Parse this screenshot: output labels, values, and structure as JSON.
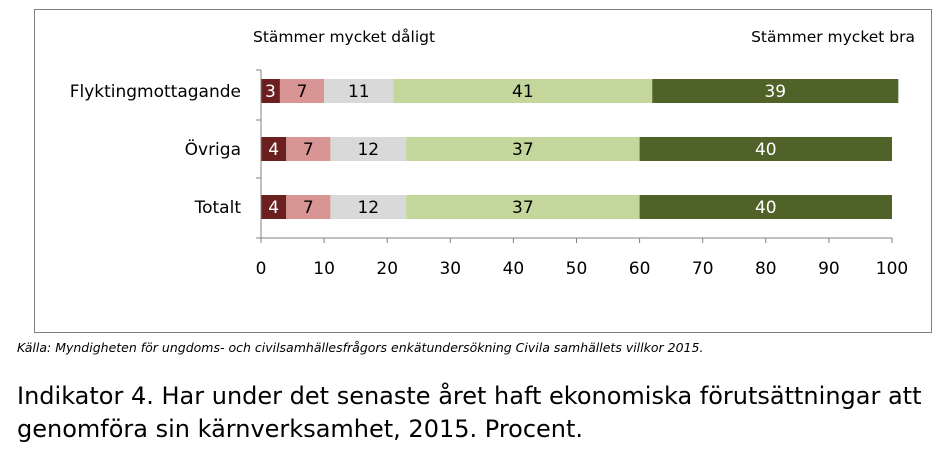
{
  "chart_data": {
    "type": "bar",
    "orientation": "horizontal",
    "stacked": true,
    "categories": [
      "Flyktingmottagande",
      "Övriga",
      "Totalt"
    ],
    "series": [
      {
        "values": [
          3,
          4,
          4
        ],
        "color": "#6b1f1f",
        "label_color": "#ffffff"
      },
      {
        "values": [
          7,
          7,
          7
        ],
        "color": "#d99594",
        "label_color": "#000000"
      },
      {
        "values": [
          11,
          12,
          12
        ],
        "color": "#d9d9d9",
        "label_color": "#000000"
      },
      {
        "values": [
          41,
          37,
          37
        ],
        "color": "#c3d69b",
        "label_color": "#000000"
      },
      {
        "values": [
          39,
          40,
          40
        ],
        "color": "#4f6228",
        "label_color": "#ffffff"
      }
    ],
    "xlim": [
      0,
      100
    ],
    "xticks": [
      0,
      10,
      20,
      30,
      40,
      50,
      60,
      70,
      80,
      90,
      100
    ],
    "annotations": {
      "left": "Stämmer mycket dåligt",
      "right": "Stämmer mycket bra"
    },
    "grid": false,
    "legend": "none"
  },
  "source_text": "Källa: Myndigheten för ungdoms- och civilsamhällesfrågors enkätundersökning Civila samhällets villkor 2015.",
  "caption": "Indikator 4. Har under det senaste året haft ekonomiska förutsättningar att genomföra sin kärnverksamhet, 2015. Procent."
}
